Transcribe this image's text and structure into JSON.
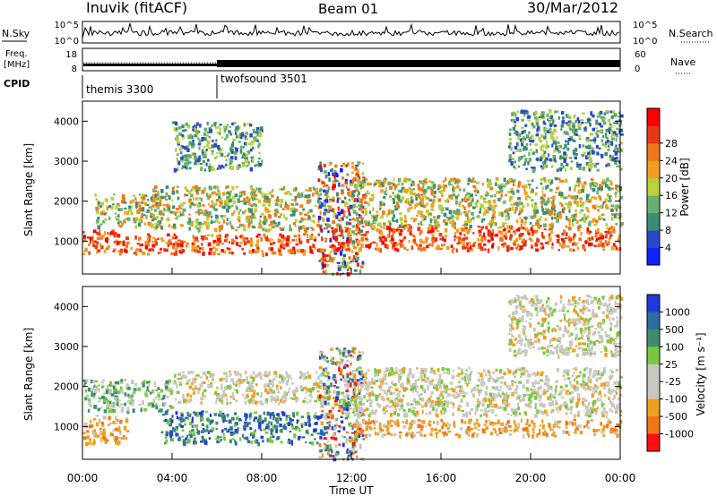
{
  "header": {
    "station": "Inuvik (fitACF)",
    "beam": "Beam 01",
    "date": "30/Mar/2012"
  },
  "summary_panels": {
    "nsky": {
      "label": "N.Sky",
      "right_label": "N.Search",
      "ticks_left": [
        "10^5",
        "10^0"
      ],
      "ticks_right": [
        "10^5",
        "10^0"
      ]
    },
    "freq": {
      "label_line1": "Freq.",
      "label_line2": "[MHz]",
      "right_label": "Nave",
      "ticks_left": [
        "18",
        "8"
      ],
      "ticks_right": [
        "60",
        "0"
      ]
    },
    "cpid": {
      "label": "CPID",
      "programs": [
        {
          "name": "themis 3300",
          "start_hour": 0
        },
        {
          "name": "twofsound 3501",
          "start_hour": 6
        }
      ]
    }
  },
  "chart_data": [
    {
      "type": "heatmap",
      "name": "power-panel",
      "x_label": "",
      "ylabel": "Slant Range [km]",
      "x_range_hours": [
        0,
        24
      ],
      "ylim": [
        180,
        4500
      ],
      "y_ticks": [
        1000,
        2000,
        3000,
        4000
      ],
      "colorbar": {
        "label": "Power [dB]",
        "tick_labels": [
          "4",
          "8",
          "12",
          "16",
          "20",
          "24",
          "28"
        ],
        "colors": [
          "#1020ff",
          "#2a48c8",
          "#3c8c74",
          "#68b070",
          "#b8d23c",
          "#f0a020",
          "#f07818",
          "#e83818",
          "#ff0000"
        ]
      },
      "scatter_bands": [
        {
          "hours": [
            0,
            1.5
          ],
          "ranges_km": [
            700,
            1300
          ],
          "level": "high"
        },
        {
          "hours": [
            0.5,
            3.5
          ],
          "ranges_km": [
            1400,
            2200
          ],
          "level": "medium"
        },
        {
          "hours": [
            1.5,
            10.5
          ],
          "ranges_km": [
            700,
            1200
          ],
          "level": "high"
        },
        {
          "hours": [
            3,
            10.5
          ],
          "ranges_km": [
            1300,
            2400
          ],
          "level": "medium"
        },
        {
          "hours": [
            4,
            8
          ],
          "ranges_km": [
            2800,
            4000
          ],
          "level": "low"
        },
        {
          "hours": [
            10.5,
            12.5
          ],
          "ranges_km": [
            200,
            3000
          ],
          "level": "mixed"
        },
        {
          "hours": [
            11,
            24
          ],
          "ranges_km": [
            800,
            1400
          ],
          "level": "high"
        },
        {
          "hours": [
            12,
            24
          ],
          "ranges_km": [
            1400,
            2600
          ],
          "level": "medium"
        },
        {
          "hours": [
            19,
            24
          ],
          "ranges_km": [
            2800,
            4300
          ],
          "level": "low"
        }
      ]
    },
    {
      "type": "heatmap",
      "name": "velocity-panel",
      "xlabel": "Time UT",
      "ylabel": "Slant Range [km]",
      "x_range_hours": [
        0,
        24
      ],
      "x_tick_labels": [
        "00:00",
        "04:00",
        "08:00",
        "12:00",
        "16:00",
        "20:00",
        "00:00"
      ],
      "ylim": [
        180,
        4500
      ],
      "y_ticks": [
        1000,
        2000,
        3000,
        4000
      ],
      "colorbar": {
        "label": "Velocity [m s⁻¹]",
        "tick_labels": [
          "1000",
          "500",
          "100",
          "25",
          "-25",
          "-100",
          "-500",
          "-1000"
        ],
        "colors": [
          "#2038d8",
          "#2e6ca0",
          "#3e8e6e",
          "#78c840",
          "#c8c8c0",
          "#c8c8c0",
          "#f0a020",
          "#f07818",
          "#ff1010"
        ]
      },
      "scatter_bands": [
        {
          "hours": [
            0,
            2
          ],
          "ranges_km": [
            600,
            1300
          ],
          "level": "away"
        },
        {
          "hours": [
            0,
            4
          ],
          "ranges_km": [
            1400,
            2200
          ],
          "level": "toward"
        },
        {
          "hours": [
            3.5,
            10.5
          ],
          "ranges_km": [
            600,
            1400
          ],
          "level": "toward-strong"
        },
        {
          "hours": [
            4,
            11
          ],
          "ranges_km": [
            1600,
            2400
          ],
          "level": "neutral"
        },
        {
          "hours": [
            10.5,
            12.5
          ],
          "ranges_km": [
            200,
            3000
          ],
          "level": "mixed"
        },
        {
          "hours": [
            12,
            24
          ],
          "ranges_km": [
            800,
            1200
          ],
          "level": "away"
        },
        {
          "hours": [
            12,
            24
          ],
          "ranges_km": [
            1300,
            2500
          ],
          "level": "neutral"
        },
        {
          "hours": [
            19,
            24
          ],
          "ranges_km": [
            2800,
            4300
          ],
          "level": "neutral"
        }
      ]
    }
  ]
}
